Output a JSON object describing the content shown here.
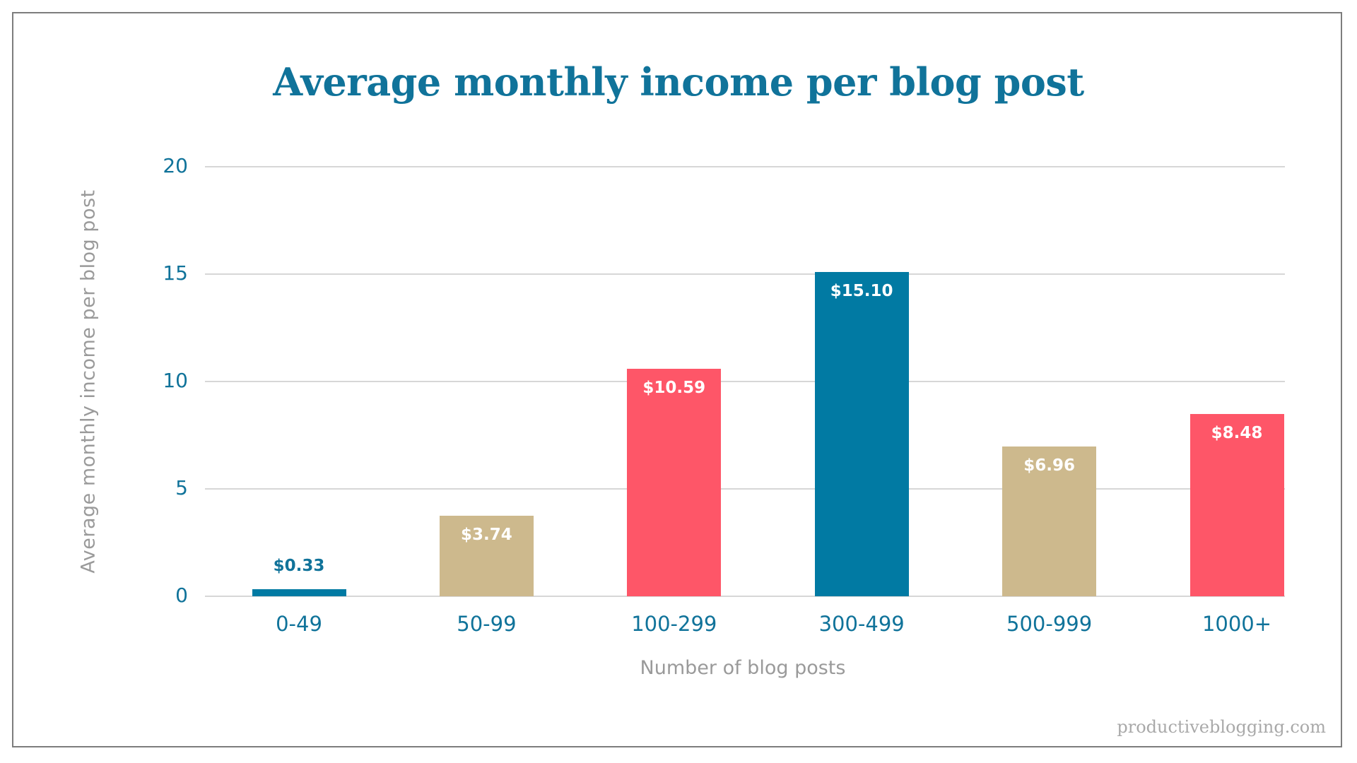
{
  "title": "Average monthly income per blog post",
  "y_axis": {
    "label": "Average monthly income per blog post",
    "ticks": [
      "0",
      "5",
      "10",
      "15",
      "20"
    ]
  },
  "x_axis": {
    "label": "Number of blog posts"
  },
  "bars": [
    {
      "category": "0-49",
      "value": 0.33,
      "label": "$0.33",
      "color": "#017aa3"
    },
    {
      "category": "50-99",
      "value": 3.74,
      "label": "$3.74",
      "color": "#cdb98d"
    },
    {
      "category": "100-299",
      "value": 10.59,
      "label": "$10.59",
      "color": "#fe5668"
    },
    {
      "category": "300-499",
      "value": 15.1,
      "label": "$15.10",
      "color": "#017aa3"
    },
    {
      "category": "500-999",
      "value": 6.96,
      "label": "$6.96",
      "color": "#cdb98d"
    },
    {
      "category": "1000+",
      "value": 8.48,
      "label": "$8.48",
      "color": "#fe5668"
    }
  ],
  "credit": "productiveblogging.com",
  "chart_data": {
    "type": "bar",
    "title": "Average monthly income per blog post",
    "categories": [
      "0-49",
      "50-99",
      "100-299",
      "300-499",
      "500-999",
      "1000+"
    ],
    "values": [
      0.33,
      3.74,
      10.59,
      15.1,
      6.96,
      8.48
    ],
    "data_labels": [
      "$0.33",
      "$3.74",
      "$10.59",
      "$15.10",
      "$6.96",
      "$8.48"
    ],
    "colors": [
      "#017aa3",
      "#cdb98d",
      "#fe5668",
      "#017aa3",
      "#cdb98d",
      "#fe5668"
    ],
    "xlabel": "Number of blog posts",
    "ylabel": "Average monthly income per blog post",
    "ylim": [
      0,
      20
    ],
    "yticks": [
      0,
      5,
      10,
      15,
      20
    ],
    "grid": true,
    "legend": null
  }
}
